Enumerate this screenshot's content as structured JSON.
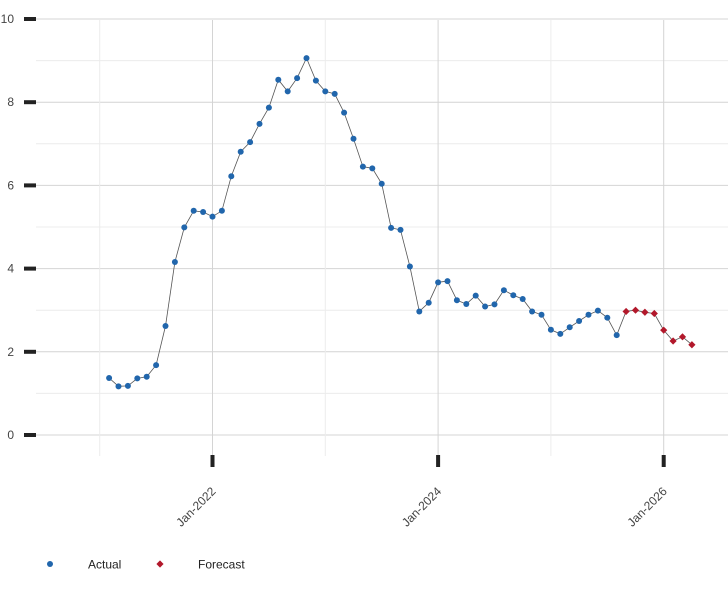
{
  "chart_data": {
    "type": "line",
    "title": "",
    "xlabel": "",
    "ylabel": "",
    "ylim": [
      0,
      10
    ],
    "y_ticks": [
      "0",
      "2",
      "4",
      "6",
      "8",
      "10"
    ],
    "x_ticks": [
      "Jan-2022",
      "Jan-2024",
      "Jan-2026"
    ],
    "grid": true,
    "legend_position": "bottom-left",
    "series": [
      {
        "name": "Actual",
        "color": "#2166ac",
        "marker": "circle",
        "x": [
          "2021-02",
          "2021-03",
          "2021-04",
          "2021-05",
          "2021-06",
          "2021-07",
          "2021-08",
          "2021-09",
          "2021-10",
          "2021-11",
          "2021-12",
          "2022-01",
          "2022-02",
          "2022-03",
          "2022-04",
          "2022-05",
          "2022-06",
          "2022-07",
          "2022-08",
          "2022-09",
          "2022-10",
          "2022-11",
          "2022-12",
          "2023-01",
          "2023-02",
          "2023-03",
          "2023-04",
          "2023-05",
          "2023-06",
          "2023-07",
          "2023-08",
          "2023-09",
          "2023-10",
          "2023-11",
          "2023-12",
          "2024-01",
          "2024-02",
          "2024-03",
          "2024-04",
          "2024-05",
          "2024-06",
          "2024-07",
          "2024-08",
          "2024-09",
          "2024-10",
          "2024-11",
          "2024-12",
          "2025-01",
          "2025-02",
          "2025-03",
          "2025-04",
          "2025-05",
          "2025-06",
          "2025-07",
          "2025-08"
        ],
        "values": [
          1.37,
          1.17,
          1.18,
          1.36,
          1.4,
          1.68,
          2.62,
          4.16,
          4.99,
          5.39,
          5.36,
          5.25,
          5.39,
          6.22,
          6.81,
          7.04,
          7.48,
          7.87,
          8.54,
          8.26,
          8.58,
          9.06,
          8.52,
          8.26,
          8.2,
          7.75,
          7.12,
          6.45,
          6.41,
          6.04,
          4.98,
          4.93,
          4.05,
          2.97,
          3.18,
          3.67,
          3.7,
          3.24,
          3.15,
          3.35,
          3.09,
          3.14,
          3.48,
          3.36,
          3.27,
          2.97,
          2.89,
          2.53,
          2.43,
          2.59,
          2.74,
          2.89,
          2.99,
          2.82,
          2.4
        ]
      },
      {
        "name": "Forecast",
        "color": "#b2182b",
        "marker": "diamond",
        "x": [
          "2025-09",
          "2025-10",
          "2025-11",
          "2025-12",
          "2026-01",
          "2026-02",
          "2026-03",
          "2026-04"
        ],
        "values": [
          2.97,
          3.0,
          2.95,
          2.92,
          2.52,
          2.26,
          2.36,
          2.17
        ]
      }
    ]
  }
}
